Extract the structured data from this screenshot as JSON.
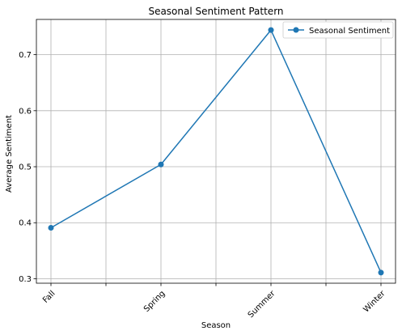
{
  "chart_data": {
    "type": "line",
    "title": "Seasonal Sentiment Pattern",
    "xlabel": "Season",
    "ylabel": "Average Sentiment",
    "categories": [
      "Fall",
      "Spring",
      "Summer",
      "Winter"
    ],
    "series": [
      {
        "name": "Seasonal Sentiment",
        "values": [
          0.391,
          0.504,
          0.744,
          0.311
        ],
        "color": "#1f77b4"
      }
    ],
    "ylim": [
      0.292,
      0.763
    ],
    "yticks": [
      0.3,
      0.4,
      0.5,
      0.6,
      0.7
    ],
    "ytick_labels": [
      "0.3",
      "0.4",
      "0.5",
      "0.6",
      "0.7"
    ],
    "grid": true,
    "legend_position": "top-right",
    "xtick_rotation": 45
  }
}
